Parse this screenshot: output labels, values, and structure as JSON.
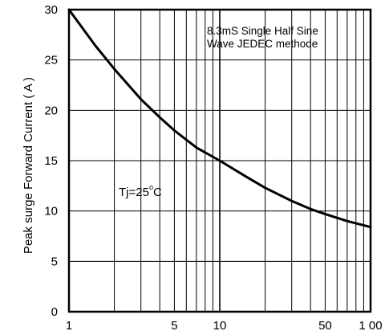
{
  "chart_data": {
    "type": "line",
    "xlabel": "",
    "ylabel": "Peak surge Forward Current ( A )",
    "x_scale": "log",
    "xlim": [
      1,
      100
    ],
    "ylim": [
      0,
      30
    ],
    "x_ticks": [
      1,
      5,
      10,
      50,
      100
    ],
    "x_tick_labels": [
      "1",
      "5",
      "10",
      "50",
      "1 00"
    ],
    "x_minor_grid": [
      2,
      3,
      4,
      5,
      6,
      7,
      8,
      9,
      20,
      30,
      40,
      50,
      60,
      70,
      80,
      90
    ],
    "y_ticks": [
      0,
      5,
      10,
      15,
      20,
      25,
      30
    ],
    "y_tick_labels": [
      "0",
      "5",
      "10",
      "15",
      "20",
      "25",
      "30"
    ],
    "grid": true,
    "series": [
      {
        "name": "",
        "x": [
          1,
          1.5,
          2,
          3,
          4,
          5,
          7,
          10,
          15,
          20,
          30,
          40,
          50,
          70,
          100
        ],
        "y": [
          30,
          26.4,
          24.1,
          21.1,
          19.3,
          18.0,
          16.3,
          15.0,
          13.4,
          12.3,
          11.0,
          10.2,
          9.7,
          9.0,
          8.4
        ]
      }
    ],
    "annotations": {
      "note_line1": "8.3mS Single Half Sine",
      "note_line2": "Wave JEDEC methode",
      "condition": "Tj=25",
      "condition_sup": "o",
      "condition_unit": "C"
    }
  }
}
